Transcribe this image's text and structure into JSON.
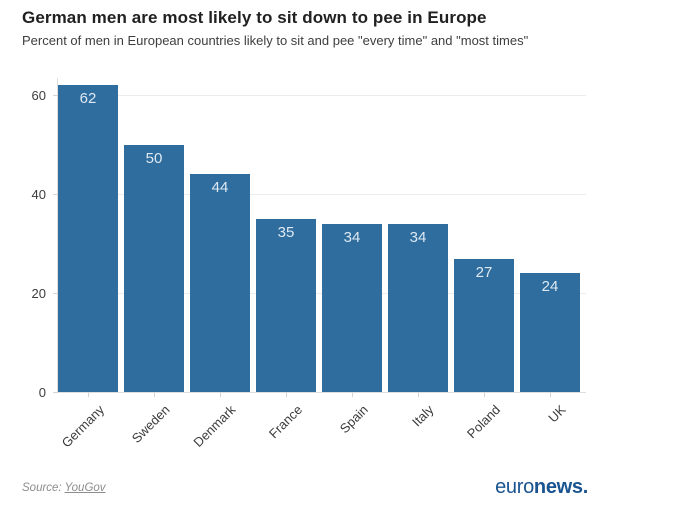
{
  "header": {
    "title": "German men are most likely to sit down to pee in Europe",
    "subtitle": "Percent of men in European countries likely to sit and pee \"every time\" and \"most times\""
  },
  "chart_data": {
    "type": "bar",
    "categories": [
      "Germany",
      "Sweden",
      "Denmark",
      "France",
      "Spain",
      "Italy",
      "Poland",
      "UK"
    ],
    "values": [
      62,
      50,
      44,
      35,
      34,
      34,
      27,
      24
    ],
    "title": "German men are most likely to sit down to pee in Europe",
    "subtitle": "Percent of men in European countries likely to sit and pee \"every time\" and \"most times\"",
    "xlabel": "",
    "ylabel": "",
    "ylim": [
      0,
      63.5
    ],
    "yticks": [
      0,
      20,
      40,
      60
    ],
    "grid": true,
    "legend": false,
    "bar_labels_shown": true,
    "bar_color": "#2e6d9e",
    "bar_label_color": "#dfe9f3",
    "tick_label_color": "#3c3c3c",
    "grid_color": "#ececec",
    "axis_color": "#dedede"
  },
  "footer": {
    "source_prefix": "Source: ",
    "source_link_label": "YouGov",
    "brand_light": "euro",
    "brand_bold": "news.",
    "brand_color": "#1a5490"
  }
}
